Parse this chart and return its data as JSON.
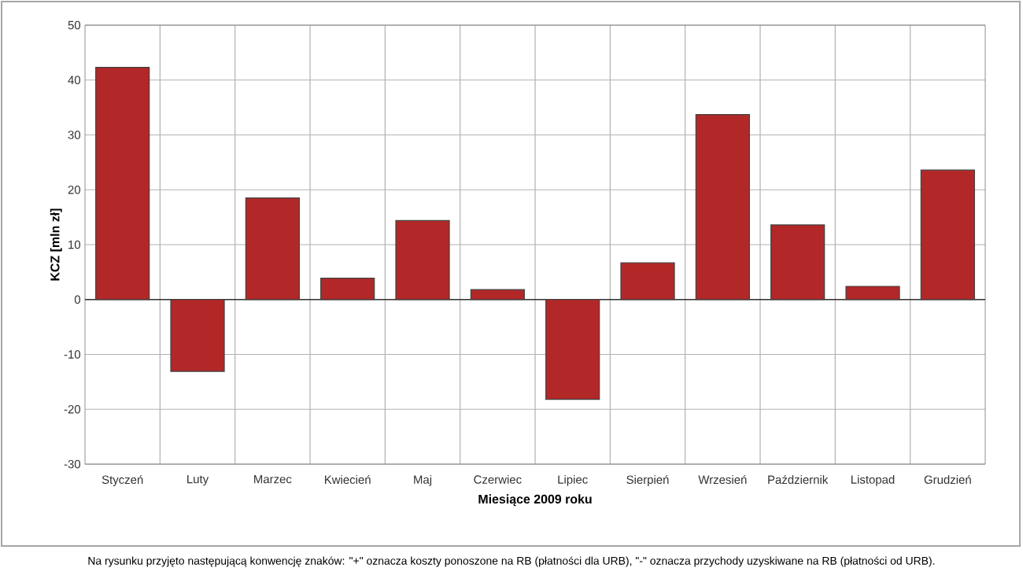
{
  "chart_data": {
    "type": "bar",
    "xlabel": "Miesiące 2009  roku",
    "ylabel": "KCZ [mln zł]",
    "categories": [
      "Styczeń",
      "Luty",
      "Marzec",
      "Kwiecień",
      "Maj",
      "Czerwiec",
      "Lipiec",
      "Sierpień",
      "Wrzesień",
      "Październik",
      "Listopad",
      "Grudzień"
    ],
    "values": [
      42.3,
      -13.1,
      18.5,
      3.9,
      14.4,
      1.8,
      -18.2,
      6.7,
      33.7,
      13.6,
      2.4,
      23.6
    ],
    "color": "#b22828",
    "ylim": [
      -30,
      50
    ],
    "yticks": [
      -30,
      -20,
      -10,
      0,
      10,
      20,
      30,
      40,
      50
    ],
    "grid": true,
    "annotations": [
      "Na rysunku przyjęto następującą konwencję znaków: \"+\" oznacza koszty ponoszone na RB (płatności dla URB), \"-\" oznacza przychody uzyskiwane na RB (płatności od URB)."
    ]
  }
}
